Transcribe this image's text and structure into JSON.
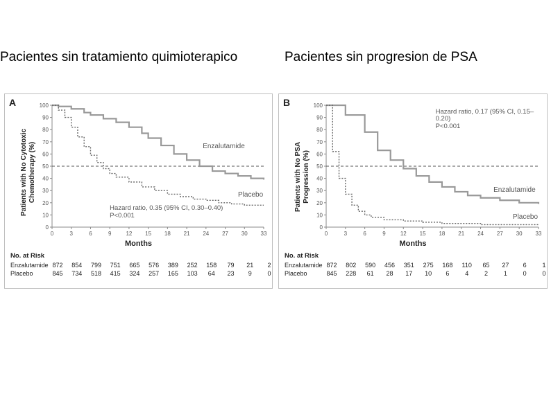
{
  "headers": {
    "left": "Pacientes sin tratamiento quimioterapico",
    "right": "Pacientes sin progresion de PSA"
  },
  "panelA": {
    "label": "A",
    "type": "kaplan-meier",
    "ylabel": "Patients with No Cytotoxic\nChemotherapy (%)",
    "xlabel": "Months",
    "ylim": [
      0,
      100
    ],
    "ytick_step": 10,
    "xlim": [
      0,
      33
    ],
    "xtick_step": 3,
    "xticks": [
      0,
      3,
      6,
      9,
      12,
      15,
      18,
      21,
      24,
      27,
      30,
      33
    ],
    "yticks": [
      0,
      10,
      20,
      30,
      40,
      50,
      60,
      70,
      80,
      90,
      100
    ],
    "ref_line_y": 50,
    "background_color": "#ffffff",
    "axis_color": "#888888",
    "tick_fontsize": 8,
    "label_fontsize": 10,
    "series": [
      {
        "name": "Enzalutamide",
        "label": "Enzalutamide",
        "color": "#999999",
        "line_width": 2.2,
        "dash": "none",
        "points": [
          [
            0,
            100
          ],
          [
            1,
            99
          ],
          [
            3,
            97
          ],
          [
            5,
            94
          ],
          [
            6,
            92
          ],
          [
            8,
            89
          ],
          [
            10,
            86
          ],
          [
            12,
            82
          ],
          [
            14,
            77
          ],
          [
            15,
            73
          ],
          [
            17,
            67
          ],
          [
            19,
            60
          ],
          [
            21,
            55
          ],
          [
            23,
            50
          ],
          [
            25,
            46
          ],
          [
            27,
            44
          ],
          [
            29,
            42
          ],
          [
            31,
            40
          ],
          [
            33,
            39
          ]
        ],
        "label_pos": [
          23.5,
          66
        ]
      },
      {
        "name": "Placebo",
        "label": "Placebo",
        "color": "#666666",
        "line_width": 1.4,
        "dash": "2 2",
        "points": [
          [
            0,
            100
          ],
          [
            1,
            96
          ],
          [
            2,
            90
          ],
          [
            3,
            82
          ],
          [
            4,
            74
          ],
          [
            5,
            66
          ],
          [
            6,
            59
          ],
          [
            7,
            53
          ],
          [
            8,
            48
          ],
          [
            9,
            44
          ],
          [
            10,
            41
          ],
          [
            12,
            37
          ],
          [
            14,
            33
          ],
          [
            16,
            30
          ],
          [
            18,
            27
          ],
          [
            20,
            25
          ],
          [
            22,
            23
          ],
          [
            24,
            22
          ],
          [
            26,
            20
          ],
          [
            28,
            19
          ],
          [
            30,
            18
          ],
          [
            33,
            18
          ]
        ],
        "label_pos": [
          29,
          26
        ]
      }
    ],
    "hazard_text": "Hazard ratio, 0.35 (95% CI, 0.30–0.40)\nP<0.001",
    "hazard_pos": [
      9,
      15
    ],
    "risk_table": {
      "title": "No. at Risk",
      "rows": [
        {
          "name": "Enzalutamide",
          "values": [
            872,
            854,
            799,
            751,
            665,
            576,
            389,
            252,
            158,
            79,
            21,
            2
          ]
        },
        {
          "name": "Placebo",
          "values": [
            845,
            734,
            518,
            415,
            324,
            257,
            165,
            103,
            64,
            23,
            9,
            0
          ]
        }
      ]
    }
  },
  "panelB": {
    "label": "B",
    "type": "kaplan-meier",
    "ylabel": "Patients with No PSA\nProgression (%)",
    "xlabel": "Months",
    "ylim": [
      0,
      100
    ],
    "ytick_step": 10,
    "xlim": [
      0,
      33
    ],
    "xtick_step": 3,
    "xticks": [
      0,
      3,
      6,
      9,
      12,
      15,
      18,
      21,
      24,
      27,
      30,
      33
    ],
    "yticks": [
      0,
      10,
      20,
      30,
      40,
      50,
      60,
      70,
      80,
      90,
      100
    ],
    "ref_line_y": 50,
    "background_color": "#ffffff",
    "axis_color": "#888888",
    "tick_fontsize": 8,
    "label_fontsize": 10,
    "series": [
      {
        "name": "Enzalutamide",
        "label": "Enzalutamide",
        "color": "#999999",
        "line_width": 2.2,
        "dash": "none",
        "points": [
          [
            0,
            100
          ],
          [
            2,
            100
          ],
          [
            3,
            92
          ],
          [
            5,
            92
          ],
          [
            6,
            78
          ],
          [
            7,
            78
          ],
          [
            8,
            63
          ],
          [
            9,
            63
          ],
          [
            10,
            55
          ],
          [
            12,
            48
          ],
          [
            14,
            42
          ],
          [
            16,
            37
          ],
          [
            18,
            33
          ],
          [
            20,
            29
          ],
          [
            22,
            26
          ],
          [
            24,
            24
          ],
          [
            27,
            22
          ],
          [
            30,
            20
          ],
          [
            33,
            19
          ]
        ],
        "label_pos": [
          26,
          30
        ]
      },
      {
        "name": "Placebo",
        "label": "Placebo",
        "color": "#666666",
        "line_width": 1.4,
        "dash": "2 2",
        "points": [
          [
            0,
            100
          ],
          [
            1,
            62
          ],
          [
            2,
            40
          ],
          [
            3,
            27
          ],
          [
            4,
            18
          ],
          [
            5,
            13
          ],
          [
            6,
            10
          ],
          [
            7,
            8
          ],
          [
            9,
            6
          ],
          [
            12,
            5
          ],
          [
            15,
            4
          ],
          [
            18,
            3
          ],
          [
            21,
            3
          ],
          [
            24,
            2
          ],
          [
            27,
            2
          ],
          [
            30,
            2
          ],
          [
            33,
            2
          ]
        ],
        "label_pos": [
          29,
          8
        ]
      }
    ],
    "hazard_text": "Hazard ratio, 0.17 (95% CI, 0.15–0.20)\nP<0.001",
    "hazard_pos": [
      17,
      94
    ],
    "risk_table": {
      "title": "No. at Risk",
      "rows": [
        {
          "name": "Enzalutamide",
          "values": [
            872,
            802,
            590,
            456,
            351,
            275,
            168,
            110,
            65,
            27,
            6,
            1
          ]
        },
        {
          "name": "Placebo",
          "values": [
            845,
            228,
            61,
            28,
            17,
            10,
            6,
            4,
            2,
            1,
            0,
            0
          ]
        }
      ]
    }
  }
}
